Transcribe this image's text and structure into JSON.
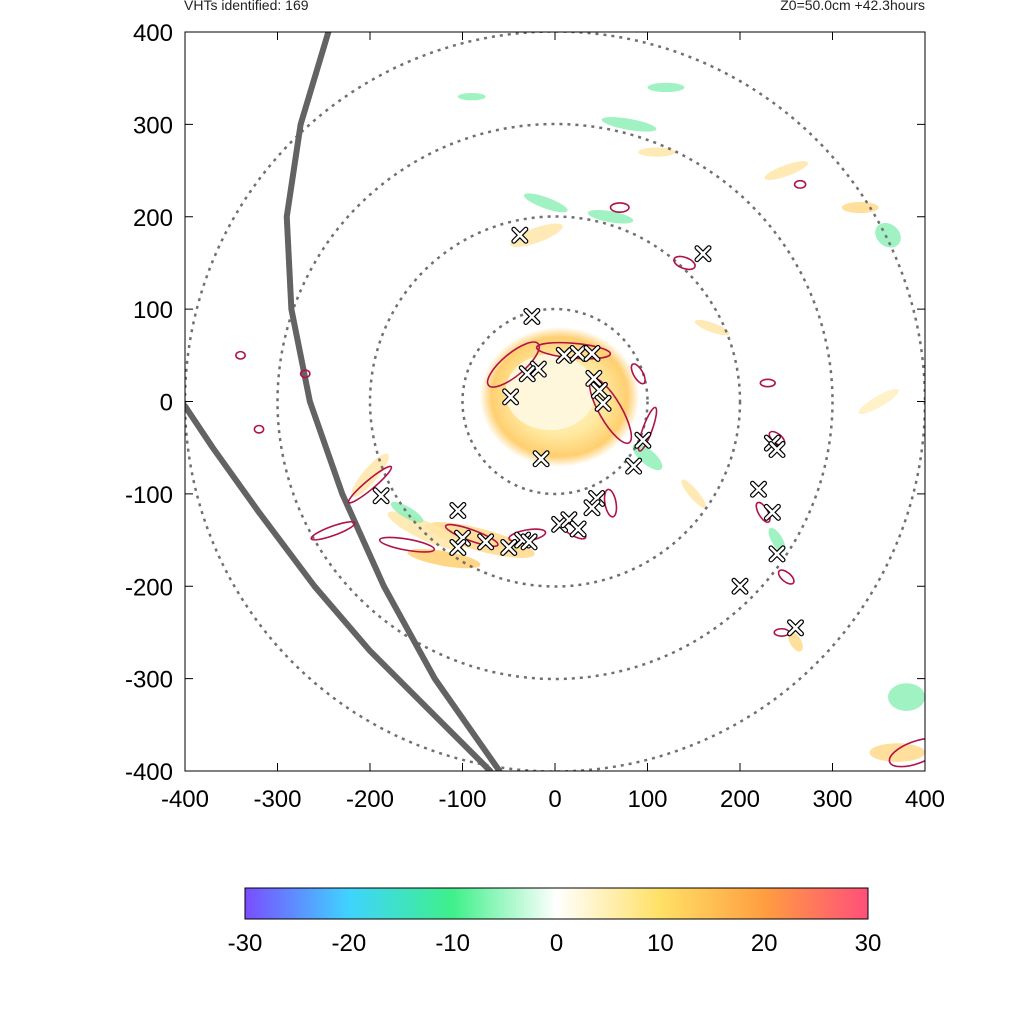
{
  "header": {
    "left": "VHTs identified: 169",
    "right": "Z0=50.0cm  +42.3hours"
  },
  "chart_data": {
    "type": "scatter",
    "title": "",
    "xlabel": "",
    "ylabel": "",
    "xlim": [
      -400,
      400
    ],
    "ylim": [
      -400,
      400
    ],
    "xticks": [
      "-400",
      "-300",
      "-200",
      "-100",
      "0",
      "100",
      "200",
      "300",
      "400"
    ],
    "yticks": [
      "400",
      "300",
      "200",
      "100",
      "0",
      "-100",
      "-200",
      "-300",
      "-400"
    ],
    "range_rings": [
      100,
      200,
      300,
      400
    ],
    "vht_markers": [
      [
        -38,
        180
      ],
      [
        -25,
        92
      ],
      [
        160,
        160
      ],
      [
        -18,
        35
      ],
      [
        -30,
        30
      ],
      [
        -48,
        5
      ],
      [
        10,
        50
      ],
      [
        25,
        52
      ],
      [
        40,
        52
      ],
      [
        42,
        25
      ],
      [
        48,
        12
      ],
      [
        52,
        -2
      ],
      [
        -15,
        -62
      ],
      [
        95,
        -42
      ],
      [
        85,
        -70
      ],
      [
        45,
        -105
      ],
      [
        40,
        -115
      ],
      [
        235,
        -45
      ],
      [
        240,
        -52
      ],
      [
        220,
        -95
      ],
      [
        235,
        -120
      ],
      [
        240,
        -165
      ],
      [
        200,
        -200
      ],
      [
        260,
        -245
      ],
      [
        -188,
        -102
      ],
      [
        -105,
        -118
      ],
      [
        -100,
        -148
      ],
      [
        -105,
        -158
      ],
      [
        -75,
        -152
      ],
      [
        -50,
        -158
      ],
      [
        -35,
        -150
      ],
      [
        -28,
        -152
      ],
      [
        5,
        -133
      ],
      [
        15,
        -128
      ],
      [
        25,
        -138
      ]
    ],
    "contours": [
      {
        "cx": -45,
        "cy": 40,
        "rx": 35,
        "ry": 12,
        "rot": -40
      },
      {
        "cx": 60,
        "cy": -10,
        "rx": 40,
        "ry": 12,
        "rot": 60
      },
      {
        "cx": 20,
        "cy": 55,
        "rx": 40,
        "ry": 8,
        "rot": 5
      },
      {
        "cx": 90,
        "cy": 30,
        "rx": 12,
        "ry": 5,
        "rot": 60
      },
      {
        "cx": 100,
        "cy": -30,
        "rx": 25,
        "ry": 5,
        "rot": -70
      },
      {
        "cx": 60,
        "cy": -110,
        "rx": 15,
        "ry": 6,
        "rot": 80
      },
      {
        "cx": -200,
        "cy": -90,
        "rx": 30,
        "ry": 5,
        "rot": -40
      },
      {
        "cx": -240,
        "cy": -140,
        "rx": 25,
        "ry": 5,
        "rot": -20
      },
      {
        "cx": -160,
        "cy": -155,
        "rx": 30,
        "ry": 6,
        "rot": 10
      },
      {
        "cx": -90,
        "cy": -145,
        "rx": 30,
        "ry": 6,
        "rot": 20
      },
      {
        "cx": -30,
        "cy": -145,
        "rx": 20,
        "ry": 6,
        "rot": -10
      },
      {
        "cx": 20,
        "cy": -140,
        "rx": 15,
        "ry": 5,
        "rot": 30
      },
      {
        "cx": 230,
        "cy": 20,
        "rx": 8,
        "ry": 4,
        "rot": 0
      },
      {
        "cx": 240,
        "cy": -40,
        "rx": 10,
        "ry": 5,
        "rot": 40
      },
      {
        "cx": 225,
        "cy": -120,
        "rx": 12,
        "ry": 5,
        "rot": 60
      },
      {
        "cx": 250,
        "cy": -190,
        "rx": 10,
        "ry": 5,
        "rot": 40
      },
      {
        "cx": 245,
        "cy": -250,
        "rx": 8,
        "ry": 4,
        "rot": 0
      },
      {
        "cx": 265,
        "cy": 235,
        "rx": 6,
        "ry": 4,
        "rot": 0
      },
      {
        "cx": 70,
        "cy": 210,
        "rx": 10,
        "ry": 5,
        "rot": 0
      },
      {
        "cx": 140,
        "cy": 150,
        "rx": 12,
        "ry": 6,
        "rot": 20
      },
      {
        "cx": 390,
        "cy": -380,
        "rx": 30,
        "ry": 12,
        "rot": -20
      },
      {
        "cx": -340,
        "cy": 50,
        "rx": 5,
        "ry": 4,
        "rot": 0
      },
      {
        "cx": -320,
        "cy": -30,
        "rx": 5,
        "ry": 4,
        "rot": 0
      },
      {
        "cx": -270,
        "cy": 30,
        "rx": 5,
        "ry": 4,
        "rot": 0
      }
    ],
    "tracks": [
      {
        "name": "",
        "points": [
          [
            -245,
            400
          ],
          [
            -275,
            300
          ],
          [
            -290,
            200
          ],
          [
            -285,
            100
          ],
          [
            -265,
            0
          ],
          [
            -230,
            -100
          ],
          [
            -185,
            -200
          ],
          [
            -130,
            -300
          ],
          [
            -60,
            -400
          ]
        ]
      },
      {
        "name": "",
        "points": [
          [
            -400,
            -5
          ],
          [
            -370,
            -50
          ],
          [
            -320,
            -120
          ],
          [
            -260,
            -200
          ],
          [
            -200,
            -270
          ],
          [
            -140,
            -330
          ],
          [
            -70,
            -400
          ]
        ]
      }
    ],
    "colorbar": {
      "min": -30,
      "max": 30,
      "ticks": [
        "-30",
        "-20",
        "-10",
        "0",
        "10",
        "20",
        "30"
      ],
      "colors": [
        "#7a4dff",
        "#3fd3ff",
        "#3ff08a",
        "#ffffff",
        "#ffe066",
        "#ff9e40",
        "#ff4f7a"
      ]
    }
  }
}
